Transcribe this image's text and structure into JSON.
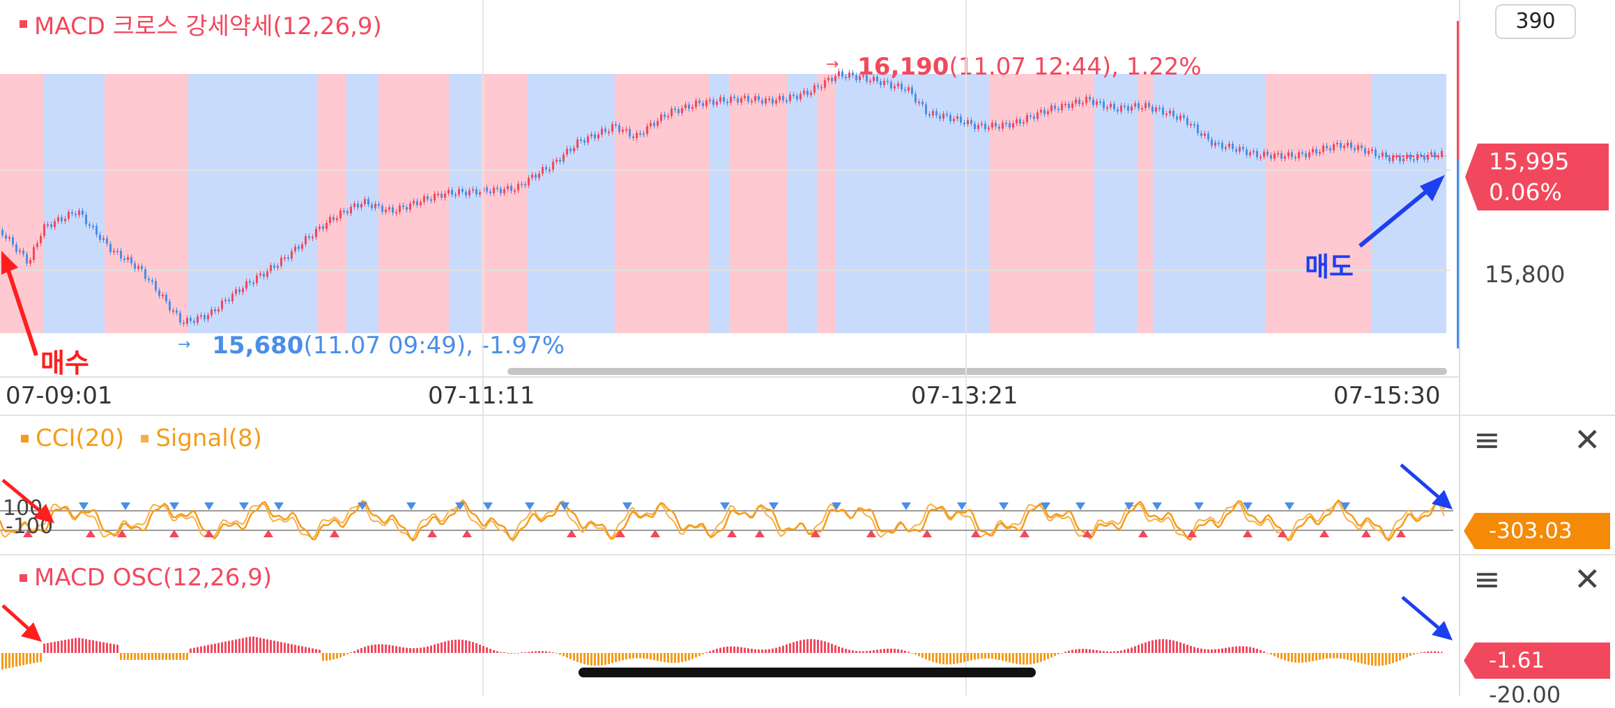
{
  "main_panel": {
    "indicator_title": "MACD 크로스 강세약세(12,26,9)",
    "high_label": {
      "price": "16,190",
      "detail": "(11.07 12:44), 1.22%"
    },
    "low_label": {
      "price": "15,680",
      "detail": "(11.07 09:49), -1.97%"
    },
    "buy_annotation": "매수",
    "sell_annotation": "매도",
    "axis_box": "390",
    "current_price": "15,995",
    "current_change": "0.06%",
    "axis_level": "15,800",
    "x_labels": [
      "07-09:01",
      "07-11:11",
      "07-13:21",
      "07-15:30"
    ]
  },
  "cci_panel": {
    "legend_cci": "CCI(20)",
    "legend_signal": "Signal(8)",
    "level_upper": "100",
    "level_lower": "-100",
    "value": "-303.03"
  },
  "osc_panel": {
    "legend": "MACD OSC(12,26,9)",
    "value": "-1.61",
    "axis_partial": "-20.00"
  },
  "colors": {
    "bull": "#f2485d",
    "bear": "#4a8ee8",
    "bull_zone": "#ffc9d1",
    "bear_zone": "#c9dbfc",
    "cci_line": "#f59b1a",
    "signal_line": "#f7b046",
    "annotation_red": "#ff1e1e",
    "annotation_blue": "#1c3ff0"
  }
}
